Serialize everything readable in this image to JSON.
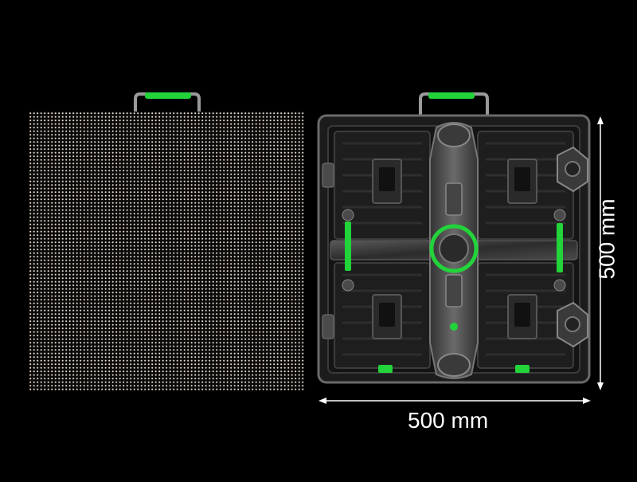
{
  "dimensions": {
    "width_label": "500 mm",
    "height_label": "500 mm"
  },
  "colors": {
    "background": "#000000",
    "accent_green": "#22d33a",
    "frame_gray": "#3a3a3a",
    "dimension_line": "#ffffff"
  },
  "panels": {
    "front": {
      "description_icon": "led-dot-matrix"
    },
    "back": {
      "description_icon": "cabinet-back-frame"
    }
  }
}
